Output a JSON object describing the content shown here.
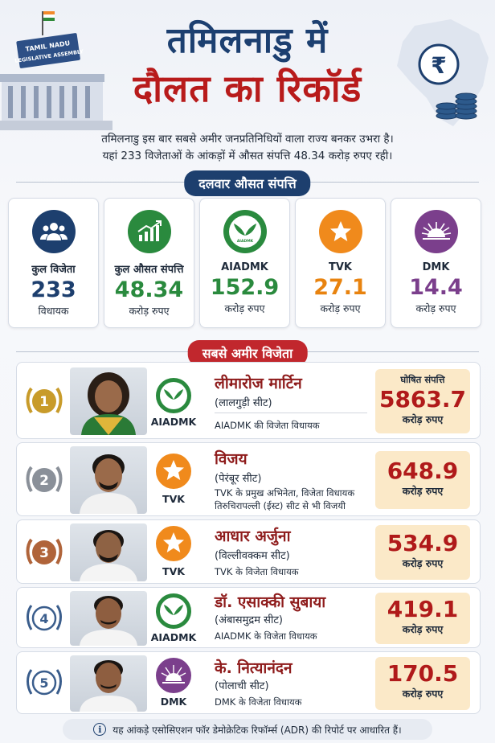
{
  "title": {
    "line1": "तमिलनाडु में",
    "line2": "दौलत का रिकॉर्ड"
  },
  "building_sign": {
    "line1": "TAMIL NADU",
    "line2": "LEGISLATIVE ASSEMBLY"
  },
  "map_symbol": "₹",
  "subtitle": {
    "line1": "तमिलनाडु इस बार सबसे अमीर जनप्रतिनिधियों वाला राज्य बनकर उभरा है।",
    "line2": "यहां 233 विजेताओं के आंकड़ों में औसत संपत्ति 48.34 करोड़ रुपए रही।"
  },
  "section_party": "दलवार औसत संपत्ति",
  "section_richest": "सबसे अमीर विजेता",
  "colors": {
    "navy": "#1d3f6e",
    "red": "#c1272d",
    "green": "#2a8a3e",
    "orange": "#f08a1c",
    "purple": "#7b3f8c"
  },
  "stats": [
    {
      "icon": "people-group-icon",
      "label": "कुल विजेता",
      "value": "233",
      "unit": "विधायक",
      "color": "#1d3f6e"
    },
    {
      "icon": "growth-chart-icon",
      "label": "कुल औसत संपत्ति",
      "value": "48.34",
      "unit": "करोड़ रुपए",
      "color": "#2a8a3e"
    },
    {
      "icon": "aiadmk-leaf-icon",
      "label": "AIADMK",
      "value": "152.9",
      "unit": "करोड़ रुपए",
      "color": "#2a8a3e"
    },
    {
      "icon": "star-icon",
      "label": "TVK",
      "value": "27.1",
      "unit": "करोड़ रुपए",
      "color": "#e8830f"
    },
    {
      "icon": "rising-sun-icon",
      "label": "DMK",
      "value": "14.4",
      "unit": "करोड़ रुपए",
      "color": "#7b3f8c"
    }
  ],
  "aiadmk_logo_text": "AIADMK",
  "winners": [
    {
      "rank": "1",
      "rank_color": "#c89b2a",
      "name": "लीमारोज मार्टिन",
      "seat": "(लालगुड़ी सीट)",
      "party": "AIADMK",
      "party_icon": "aiadmk-leaf-icon",
      "desc": "AIADMK की विजेता विधायक",
      "asset_head": "घोषित संपत्ति",
      "asset": "5863.7",
      "asset_unit": "करोड़ रुपए"
    },
    {
      "rank": "2",
      "rank_color": "#8a9099",
      "name": "विजय",
      "seat": "(पेरंबूर सीट)",
      "party": "TVK",
      "party_icon": "star-icon",
      "desc": "TVK के प्रमुख अभिनेता, विजेता विधायक तिरुचिरापल्ली (ईस्ट) सीट से भी विजयी",
      "asset": "648.9",
      "asset_unit": "करोड़ रुपए"
    },
    {
      "rank": "3",
      "rank_color": "#b0643a",
      "name": "आधार अर्जुना",
      "seat": "(विल्लीवक्कम सीट)",
      "party": "TVK",
      "party_icon": "star-icon",
      "desc": "TVK के विजेता विधायक",
      "asset": "534.9",
      "asset_unit": "करोड़ रुपए"
    },
    {
      "rank": "4",
      "rank_color": "#3a5d8c",
      "name": "डॉ. एसाक्की सुबाया",
      "seat": "(अंबासमुद्रम सीट)",
      "party": "AIADMK",
      "party_icon": "aiadmk-leaf-icon",
      "desc": "AIADMK के विजेता विधायक",
      "asset": "419.1",
      "asset_unit": "करोड़ रुपए"
    },
    {
      "rank": "5",
      "rank_color": "#3a5d8c",
      "name": "के. नित्यानंदन",
      "seat": "(पोलाची सीट)",
      "party": "DMK",
      "party_icon": "rising-sun-icon",
      "desc": "DMK के विजेता विधायक",
      "asset": "170.5",
      "asset_unit": "करोड़ रुपए"
    }
  ],
  "footer": "यह आंकड़े एसोसिएशन फॉर डेमोक्रेटिक रिफॉर्म्स (ADR) की रिपोर्ट पर आधारित हैं।"
}
